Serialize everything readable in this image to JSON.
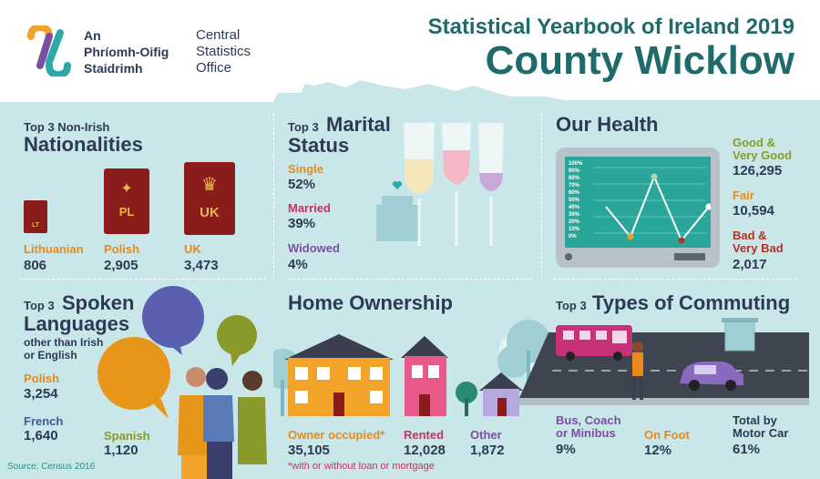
{
  "logo": {
    "irish_line1": "An",
    "irish_line2": "Phríomh-Oifig",
    "irish_line3": "Staidrimh",
    "english_line1": "Central",
    "english_line2": "Statistics",
    "english_line3": "Office"
  },
  "header": {
    "title": "Statistical Yearbook of Ireland 2019",
    "county": "County Wicklow"
  },
  "nationalities": {
    "heading_small": "Top 3 Non-Irish",
    "heading_big": "Nationalities",
    "items": [
      {
        "name": "Lithuanian",
        "value": "806",
        "code": "LT"
      },
      {
        "name": "Polish",
        "value": "2,905",
        "code": "PL"
      },
      {
        "name": "UK",
        "value": "3,473",
        "code": "UK"
      }
    ]
  },
  "marital": {
    "heading_small": "Top 3",
    "heading_big1": "Marital",
    "heading_big2": "Status",
    "items": [
      {
        "name": "Single",
        "value": "52%"
      },
      {
        "name": "Married",
        "value": "39%"
      },
      {
        "name": "Widowed",
        "value": "4%"
      }
    ]
  },
  "health": {
    "heading": "Our Health",
    "monitor_ticks": [
      "100%",
      "90%",
      "80%",
      "70%",
      "60%",
      "50%",
      "40%",
      "30%",
      "20%",
      "10%",
      "0%"
    ],
    "items": [
      {
        "name_line1": "Good &",
        "name_line2": "Very Good",
        "value": "126,295"
      },
      {
        "name_line1": "Fair",
        "name_line2": "",
        "value": "10,594"
      },
      {
        "name_line1": "Bad &",
        "name_line2": "Very Bad",
        "value": "2,017"
      }
    ]
  },
  "languages": {
    "heading_small": "Top 3",
    "heading_big1": "Spoken",
    "heading_big2": "Languages",
    "subheading1": "other than Irish",
    "subheading2": "or English",
    "items": [
      {
        "name": "Polish",
        "value": "3,254"
      },
      {
        "name": "French",
        "value": "1,640"
      },
      {
        "name": "Spanish",
        "value": "1,120"
      }
    ]
  },
  "home": {
    "heading": "Home Ownership",
    "items": [
      {
        "name": "Owner occupied*",
        "value": "35,105"
      },
      {
        "name": "Rented",
        "value": "12,028"
      },
      {
        "name": "Other",
        "value": "1,872"
      }
    ],
    "footnote": "*with or without loan or mortgage"
  },
  "commuting": {
    "heading_small": "Top 3",
    "heading_big": "Types of Commuting",
    "items": [
      {
        "name_line1": "Bus, Coach",
        "name_line2": "or Minibus",
        "value": "9%"
      },
      {
        "name_line1": "On Foot",
        "name_line2": "",
        "value": "12%"
      },
      {
        "name_line1": "Total by",
        "name_line2": "Motor Car",
        "value": "61%"
      }
    ]
  },
  "source": "Source: Census 2016"
}
